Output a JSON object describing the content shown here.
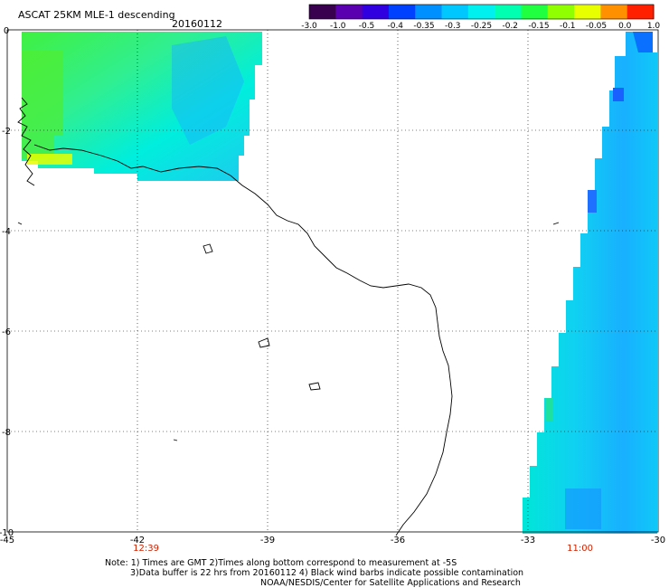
{
  "header": {
    "title": "ASCAT 25KM MLE-1 descending",
    "date": "20160112"
  },
  "colorbar": {
    "labels": [
      "-3.0",
      "-1.0",
      "-0.5",
      "-0.4",
      "-0.35",
      "-0.3",
      "-0.25",
      "-0.2",
      "-0.15",
      "-0.1",
      "-0.05",
      "0.0",
      "1.0"
    ],
    "colors": [
      "#3a0050",
      "#5a00b0",
      "#3000e0",
      "#0040ff",
      "#0090ff",
      "#00c8ff",
      "#00f0f0",
      "#00ffb0",
      "#20ff40",
      "#90ff00",
      "#e8ff00",
      "#ff9000",
      "#ff2000"
    ]
  },
  "map": {
    "lon_range": [
      -45,
      -30
    ],
    "lat_range": [
      -10,
      0
    ],
    "x_ticks": [
      "-45",
      "-42",
      "-39",
      "-36",
      "-33",
      "-30"
    ],
    "y_ticks": [
      "0",
      "-2",
      "-4",
      "-6",
      "-8",
      "-10"
    ],
    "pass_times": [
      {
        "label": "12:39",
        "lon": -41.8
      },
      {
        "label": "11:00",
        "lon": -31.8
      }
    ],
    "coast_color": "#000000"
  },
  "footer": {
    "note_line1": "Note: 1) Times are GMT 2)Times along bottom correspond to measurement at -5S",
    "note_line2": "3)Data buffer is 22 hrs from 20160112 4) Black wind barbs indicate possible contamination",
    "credit": "NOAA/NESDIS/Center for Satellite Applications and Research"
  }
}
